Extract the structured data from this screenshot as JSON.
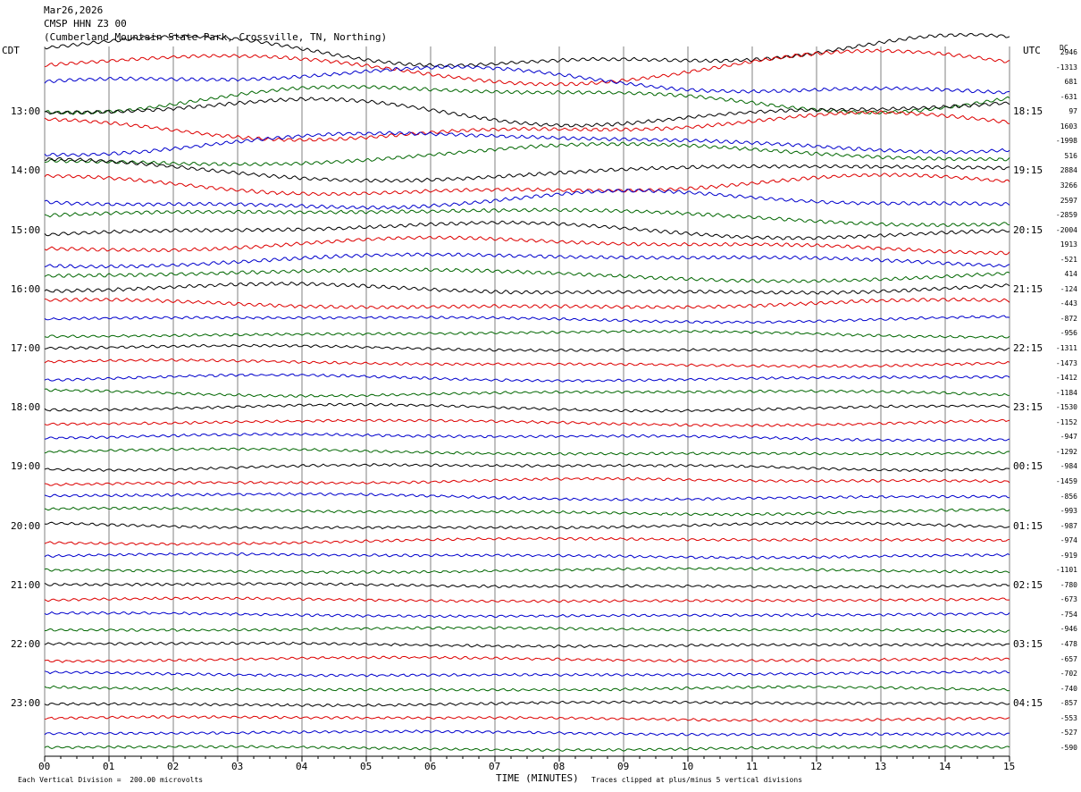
{
  "header": {
    "date": "Mar26,2026",
    "station": "CMSP HHN Z3 00",
    "location": "(Cumberland Mountain State Park, Crossville, TN, Northing)"
  },
  "corner_labels": {
    "left": "CDT",
    "right": "UTC",
    "dc": "DC"
  },
  "footer": {
    "scale": "Each Vertical Division =  200.00 microvolts",
    "xlabel": "TIME (MINUTES)",
    "clip_note": "Traces clipped at plus/minus 5 vertical divisions"
  },
  "colors": {
    "black": "#000000",
    "red": "#dd0000",
    "blue": "#0000cc",
    "green": "#006600",
    "grid": "#808080"
  },
  "chart_data": {
    "type": "line",
    "title": "CMSP HHN Z3 00",
    "xlabel": "TIME (MINUTES)",
    "xlim": [
      0,
      15
    ],
    "x_ticks": [
      "00",
      "01",
      "02",
      "03",
      "04",
      "05",
      "06",
      "07",
      "08",
      "09",
      "10",
      "11",
      "12",
      "13",
      "14",
      "15"
    ],
    "left_hour_labels": [
      "13:00",
      "14:00",
      "15:00",
      "16:00",
      "17:00",
      "18:00",
      "19:00",
      "20:00",
      "21:00",
      "22:00",
      "23:00"
    ],
    "right_hour_labels": [
      "18:15",
      "19:15",
      "20:15",
      "21:15",
      "22:15",
      "23:15",
      "00:15",
      "01:15",
      "02:15",
      "03:15",
      "04:15"
    ],
    "trace_colors": [
      "black",
      "red",
      "blue",
      "green"
    ],
    "dc_offsets": [
      2946,
      -1313,
      681,
      -631,
      97,
      1603,
      -1998,
      516,
      2884,
      3266,
      2597,
      -2859,
      -2004,
      1913,
      -521,
      414,
      -124,
      -443,
      -872,
      -956,
      -1311,
      -1473,
      -1412,
      -1184,
      -1530,
      -1152,
      -947,
      -1292,
      -984,
      -1459,
      -856,
      -993,
      -987,
      -974,
      -919,
      -1101,
      -780,
      -673,
      -754,
      -946,
      -478,
      -657,
      -702,
      -740,
      -857,
      -553,
      -527,
      -590
    ],
    "grid": true
  }
}
